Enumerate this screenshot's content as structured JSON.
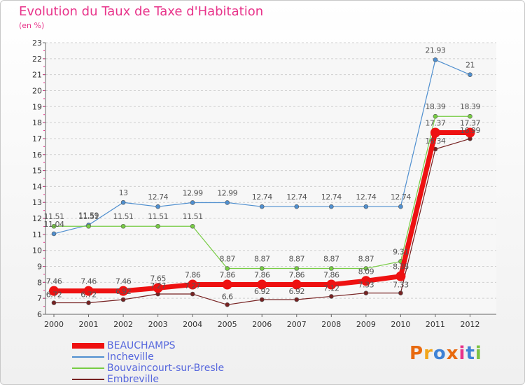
{
  "title": "Evolution du Taux de Taxe d'Habitation",
  "subtitle": "(en %)",
  "logo_text": "Proxiti",
  "logo_colors": [
    "#e86a10",
    "#f2a51a",
    "#3e82d6",
    "#e86a10",
    "#e8338a",
    "#3e82d6",
    "#7cc242"
  ],
  "chart_data": {
    "type": "line",
    "x": [
      "2000",
      "2001",
      "2002",
      "2003",
      "2004",
      "2005",
      "2006",
      "2007",
      "2008",
      "2009",
      "2010",
      "2011",
      "2012"
    ],
    "ylim": [
      6,
      23
    ],
    "yticks": [
      6,
      7,
      8,
      9,
      10,
      11,
      12,
      13,
      14,
      15,
      16,
      17,
      18,
      19,
      20,
      21,
      22,
      23
    ],
    "grid": "horizontal dashed",
    "legend": "bottom-left",
    "series": [
      {
        "name": "BEAUCHAMPS",
        "color": "#ee1111",
        "values": [
          7.46,
          7.46,
          7.46,
          7.65,
          7.86,
          7.86,
          7.86,
          7.86,
          7.86,
          8.09,
          8.38,
          17.37,
          17.37
        ],
        "labels": [
          "7.46",
          "7.46",
          "7.46",
          "7.65",
          "7.86",
          "7.86",
          "7.86",
          "7.86",
          "7.86",
          "8.09",
          "8.38",
          "17.37",
          "17.37"
        ]
      },
      {
        "name": "Incheville",
        "color": "#4f8fcf",
        "values": [
          11.04,
          11.59,
          13,
          12.74,
          12.99,
          12.99,
          12.74,
          12.74,
          12.74,
          12.74,
          12.74,
          21.93,
          21
        ],
        "labels": [
          "11.04",
          "11.59",
          "13",
          "12.74",
          "12.99",
          "12.99",
          "12.74",
          "12.74",
          "12.74",
          "12.74",
          "12.74",
          "21.93",
          "21"
        ]
      },
      {
        "name": "Bouvaincourt-sur-Bresle",
        "color": "#77cc44",
        "values": [
          11.51,
          11.51,
          11.51,
          11.51,
          11.51,
          8.87,
          8.87,
          8.87,
          8.87,
          8.87,
          9.31,
          18.39,
          18.39
        ],
        "labels": [
          "11.51",
          "11.51",
          "11.51",
          "11.51",
          "11.51",
          "8.87",
          "8.87",
          "8.87",
          "8.87",
          "8.87",
          "9.31",
          "18.39",
          "18.39"
        ]
      },
      {
        "name": "Embreville",
        "color": "#772222",
        "values": [
          6.72,
          6.72,
          6.92,
          7.27,
          7.27,
          6.6,
          6.92,
          6.92,
          7.12,
          7.33,
          7.33,
          16.34,
          16.99
        ],
        "labels": [
          "6.72",
          "6.72",
          "6.92",
          "7.27",
          "7.27",
          "6.6",
          "6.92",
          "6.92",
          "7.12",
          "7.33",
          "7.33",
          "16.34",
          "16.99"
        ]
      }
    ]
  }
}
